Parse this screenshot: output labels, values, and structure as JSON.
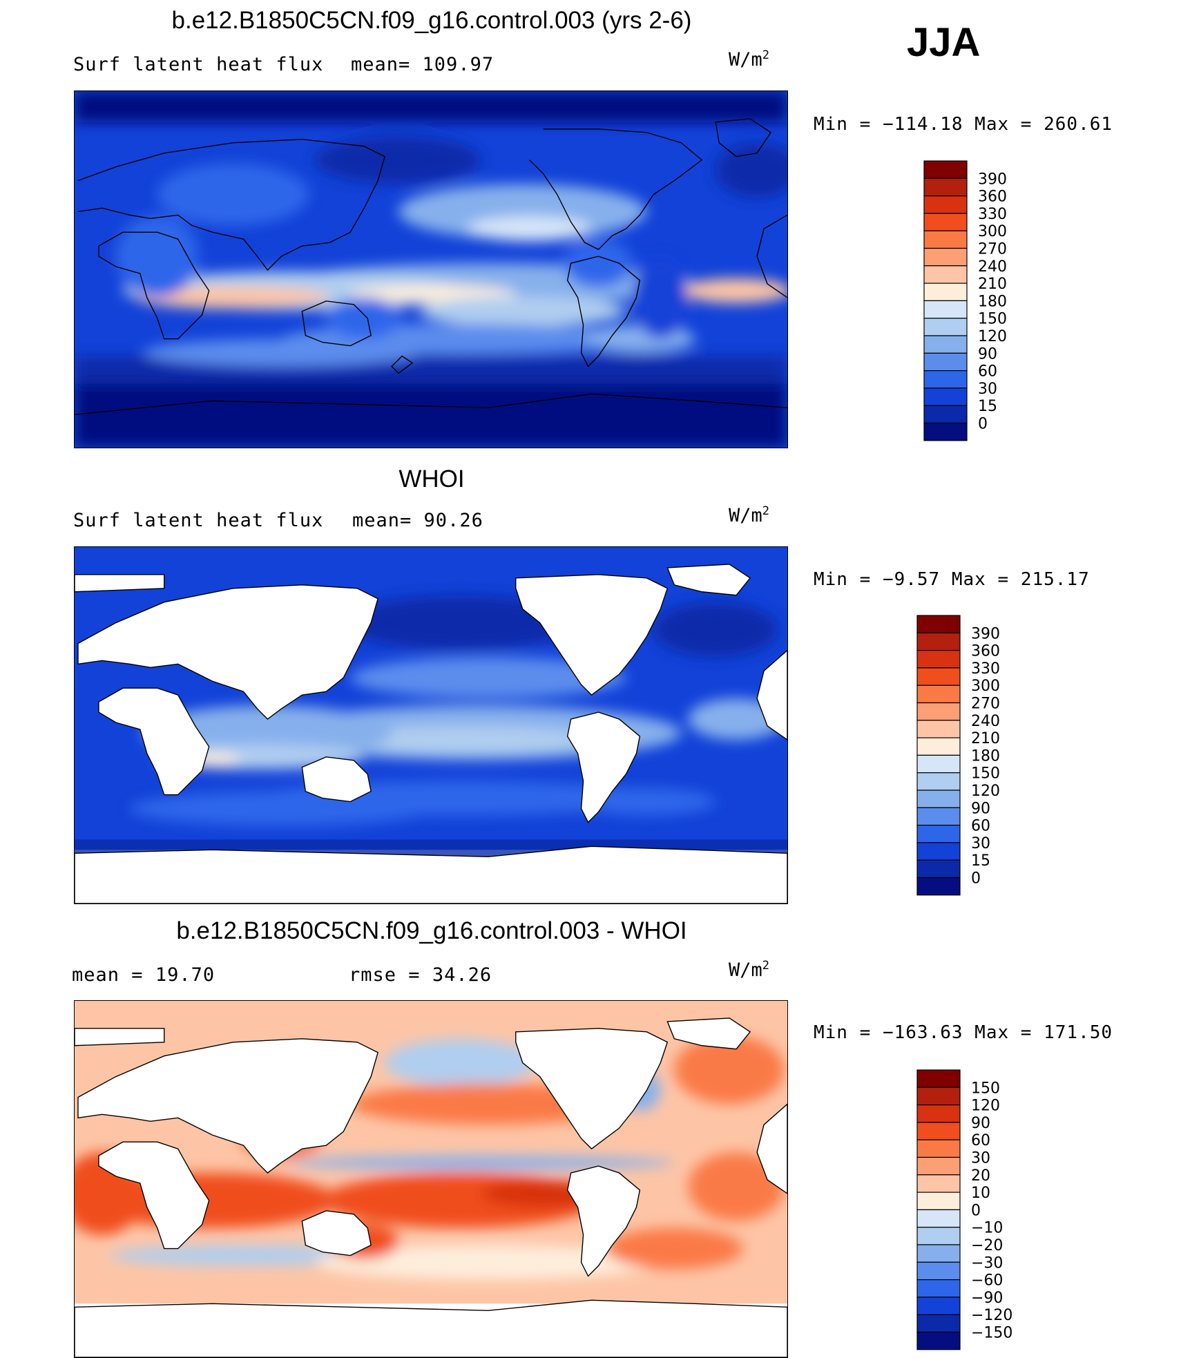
{
  "season": "JJA",
  "units_base": "W/m",
  "units_exp": "2",
  "chart_data": [
    {
      "type": "heatmap",
      "title": "b.e12.B1850C5CN.f09_g16.control.003 (yrs 2-6)",
      "subtitle": "Surf latent heat flux",
      "mean_label": "mean=",
      "mean": "109.97",
      "min_label": "Min =",
      "min": "−114.18",
      "max_label": "Max =",
      "max": "260.61",
      "levels": [
        "390",
        "360",
        "330",
        "300",
        "270",
        "240",
        "210",
        "180",
        "150",
        "120",
        "90",
        "60",
        "30",
        "15",
        "0"
      ],
      "colors": [
        "#800000",
        "#b3200e",
        "#d83210",
        "#f04e1c",
        "#fa7a46",
        "#fc9f75",
        "#fdc5a6",
        "#fdeedc",
        "#d6e6f8",
        "#b0ceef",
        "#86b0ec",
        "#5b8ded",
        "#2e66ea",
        "#1242d8",
        "#0a2aaa",
        "#040e80"
      ]
    },
    {
      "type": "heatmap",
      "title": "WHOI",
      "subtitle": "Surf latent heat flux",
      "mean_label": "mean=",
      "mean": "90.26",
      "min_label": "Min =",
      "min": "−9.57",
      "max_label": "Max =",
      "max": "215.17",
      "levels": [
        "390",
        "360",
        "330",
        "300",
        "270",
        "240",
        "210",
        "180",
        "150",
        "120",
        "90",
        "60",
        "30",
        "15",
        "0"
      ],
      "colors": [
        "#800000",
        "#b3200e",
        "#d83210",
        "#f04e1c",
        "#fa7a46",
        "#fc9f75",
        "#fdc5a6",
        "#fdeedc",
        "#d6e6f8",
        "#b0ceef",
        "#86b0ec",
        "#5b8ded",
        "#2e66ea",
        "#1242d8",
        "#0a2aaa",
        "#040e80"
      ]
    },
    {
      "type": "heatmap",
      "title": "b.e12.B1850C5CN.f09_g16.control.003 - WHOI",
      "mean_label": "mean =",
      "mean": "19.70",
      "rmse_label": "rmse =",
      "rmse": "34.26",
      "min_label": "Min =",
      "min": "−163.63",
      "max_label": "Max =",
      "max": "171.50",
      "levels": [
        "150",
        "120",
        "90",
        "60",
        "30",
        "20",
        "10",
        "0",
        "−10",
        "−20",
        "−30",
        "−60",
        "−90",
        "−120",
        "−150"
      ],
      "colors": [
        "#800000",
        "#b3200e",
        "#d83210",
        "#f04e1c",
        "#fa7a46",
        "#fc9f75",
        "#fdc5a6",
        "#fdeedc",
        "#d6e6f8",
        "#b0ceef",
        "#86b0ec",
        "#5b8ded",
        "#2e66ea",
        "#1242d8",
        "#0a2aaa",
        "#040e80"
      ]
    }
  ]
}
